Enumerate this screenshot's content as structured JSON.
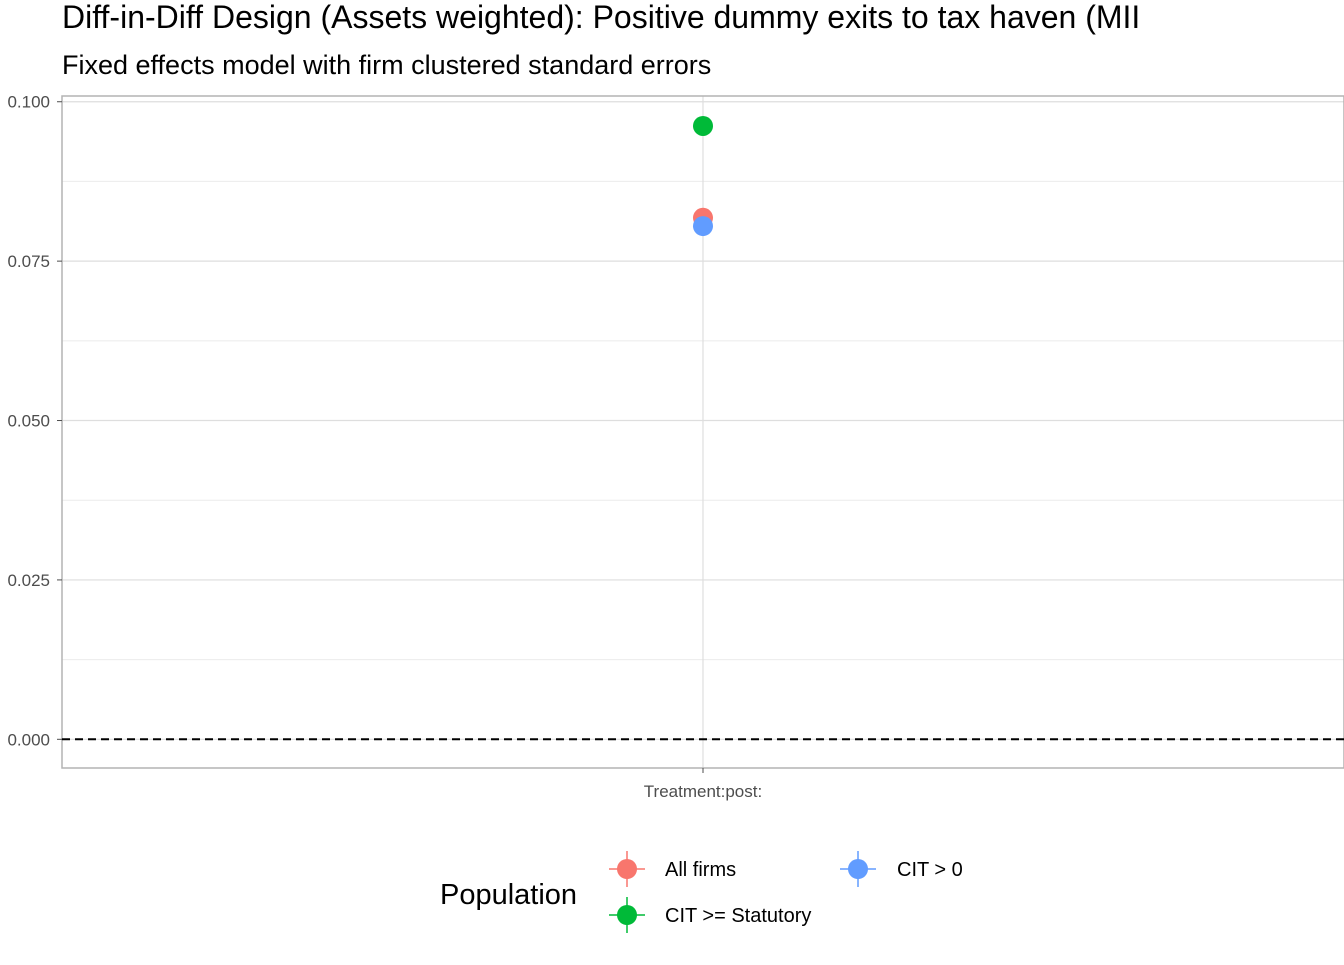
{
  "chart_data": {
    "type": "scatter",
    "title": "Diff-in-Diff Design (Assets weighted): Positive dummy exits to tax haven (MII",
    "subtitle": "Fixed effects model with firm clustered standard errors",
    "xlabel": "",
    "ylabel": "",
    "categories": [
      "Treatment:post:"
    ],
    "ylim": [
      -0.0045,
      0.1009
    ],
    "yticks": [
      0.0,
      0.025,
      0.05,
      0.075,
      0.1
    ],
    "ytick_labels": [
      "0.000",
      "0.025",
      "0.050",
      "0.075",
      "0.100"
    ],
    "grid": true,
    "reference_line": {
      "y": 0.0,
      "style": "dashed"
    },
    "legend": {
      "title": "Population",
      "position": "bottom"
    },
    "series": [
      {
        "name": "All firms",
        "color": "#F8766D",
        "values": [
          0.0818
        ]
      },
      {
        "name": "CIT > 0",
        "color": "#619CFF",
        "values": [
          0.0805
        ]
      },
      {
        "name": "CIT >= Statutory",
        "color": "#00BA38",
        "values": [
          0.0962
        ]
      }
    ]
  }
}
